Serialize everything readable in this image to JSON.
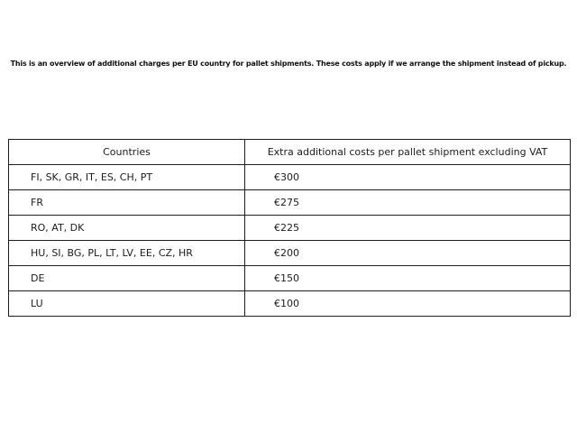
{
  "page": {
    "intro": "This is an overview of additional charges per EU country for pallet shipments. These costs apply if we arrange the shipment instead of pickup."
  },
  "table": {
    "headers": {
      "countries": "Countries",
      "costs": "Extra additional costs per pallet shipment excluding VAT"
    },
    "rows": [
      {
        "countries": "FI, SK, GR, IT, ES, CH, PT",
        "cost": "€300"
      },
      {
        "countries": "FR",
        "cost": "€275"
      },
      {
        "countries": "RO, AT, DK",
        "cost": "€225"
      },
      {
        "countries": "HU, SI, BG, PL, LT, LV, EE, CZ, HR",
        "cost": "€200"
      },
      {
        "countries": "DE",
        "cost": "€150"
      },
      {
        "countries": "LU",
        "cost": "€100"
      }
    ]
  },
  "colors": {
    "background": "#ffffff",
    "border": "#1c1c1c",
    "text": "#222222"
  }
}
